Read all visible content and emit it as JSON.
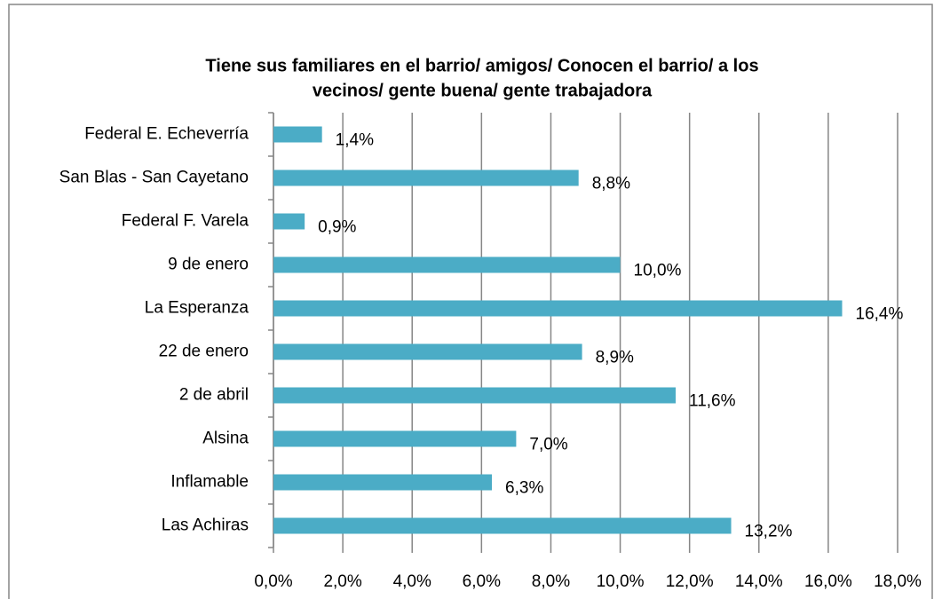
{
  "chart_data": {
    "type": "bar",
    "orientation": "horizontal",
    "title": [
      "Tiene sus familiares en el barrio/ amigos/ Conocen el barrio/ a los",
      "vecinos/ gente buena/ gente trabajadora"
    ],
    "categories": [
      "Federal E. Echeverría",
      "San Blas - San Cayetano",
      "Federal F. Varela",
      "9 de enero",
      "La Esperanza",
      "22 de enero",
      "2 de abril",
      "Alsina",
      "Inflamable",
      "Las Achiras"
    ],
    "values": [
      1.4,
      8.8,
      0.9,
      10.0,
      16.4,
      8.9,
      11.6,
      7.0,
      6.3,
      13.2
    ],
    "value_labels": [
      "1,4%",
      "8,8%",
      "0,9%",
      "10,0%",
      "16,4%",
      "8,9%",
      "11,6%",
      "7,0%",
      "6,3%",
      "13,2%"
    ],
    "color": "#4bacc6",
    "xlim": [
      0,
      18
    ],
    "xticks": [
      {
        "value": 0,
        "label": "0,0%"
      },
      {
        "value": 2,
        "label": "2,0%"
      },
      {
        "value": 4,
        "label": "4,0%"
      },
      {
        "value": 6,
        "label": "6,0%"
      },
      {
        "value": 8,
        "label": "8,0%"
      },
      {
        "value": 10,
        "label": "10,0%"
      },
      {
        "value": 12,
        "label": "12,0%"
      },
      {
        "value": 14,
        "label": "14,0%"
      },
      {
        "value": 16,
        "label": "16,0%"
      },
      {
        "value": 18,
        "label": "18,0%"
      }
    ],
    "grid": true
  }
}
